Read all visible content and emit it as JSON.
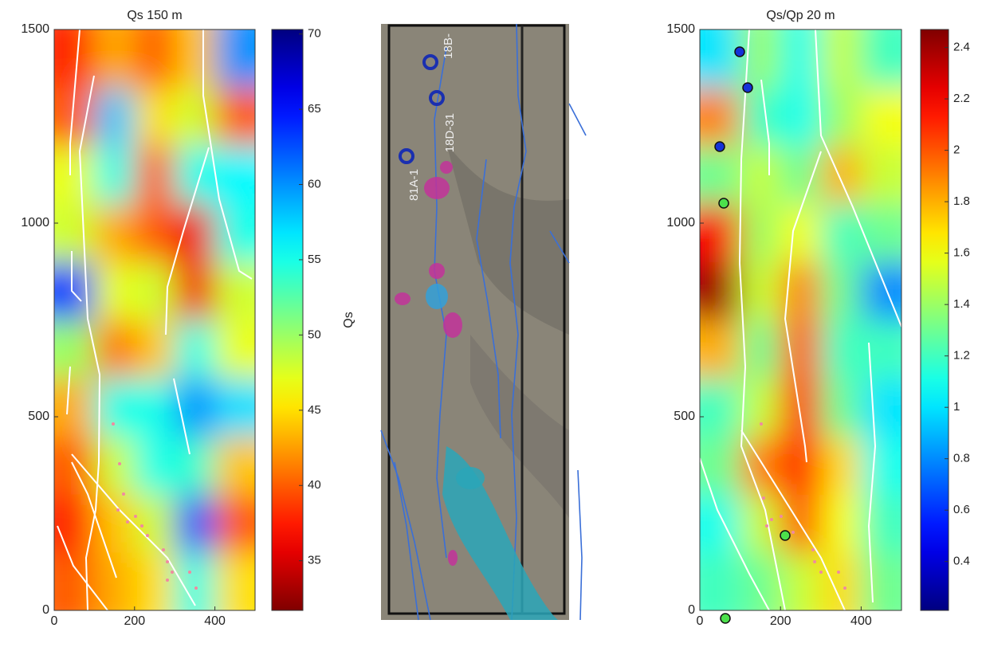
{
  "chart_data": [
    {
      "type": "heatmap",
      "title": "Qs  150 m",
      "colormap": "jet",
      "reverse": true,
      "xlim": [
        0,
        500
      ],
      "ylim": [
        0,
        1500
      ],
      "xticks": [
        0,
        200,
        400
      ],
      "yticks": [
        0,
        500,
        1000,
        1500
      ],
      "x": [
        50,
        150,
        250,
        350,
        450
      ],
      "y": [
        75,
        225,
        375,
        525,
        675,
        825,
        975,
        1125,
        1275,
        1425
      ],
      "z": [
        [
          40,
          43,
          45,
          55,
          45
        ],
        [
          38,
          44,
          48,
          62,
          40
        ],
        [
          40,
          48,
          55,
          54,
          44
        ],
        [
          43,
          55,
          55,
          60,
          57
        ],
        [
          50,
          41,
          44,
          55,
          47
        ],
        [
          63,
          47,
          48,
          36,
          48
        ],
        [
          48,
          43,
          40,
          36,
          55
        ],
        [
          47,
          55,
          40,
          55,
          56
        ],
        [
          40,
          58,
          45,
          48,
          40
        ],
        [
          38,
          43,
          40,
          44,
          60
        ]
      ],
      "clim": [
        31.7,
        70.3
      ],
      "cticks": [
        35,
        40,
        45,
        50,
        55,
        60,
        65,
        70
      ],
      "clabel": "Qs"
    },
    {
      "type": "image",
      "labels": [
        "18B-",
        "18D-31",
        "81A-1"
      ]
    },
    {
      "type": "heatmap",
      "title": "Qs/Qp 20 m",
      "colormap": "jet",
      "reverse": false,
      "xlim": [
        0,
        500
      ],
      "ylim": [
        0,
        1500
      ],
      "xticks": [
        0,
        200,
        400
      ],
      "yticks": [
        0,
        500,
        1000,
        1500
      ],
      "x": [
        50,
        150,
        250,
        350,
        450
      ],
      "y": [
        75,
        225,
        375,
        525,
        675,
        825,
        975,
        1125,
        1275,
        1425
      ],
      "z": [
        [
          1.2,
          1.3,
          1.5,
          1.7,
          1.3
        ],
        [
          1.1,
          1.5,
          2.0,
          1.6,
          1.2
        ],
        [
          1.3,
          1.9,
          2.1,
          1.7,
          1.1
        ],
        [
          1.2,
          1.5,
          2.1,
          1.3,
          1.0
        ],
        [
          1.8,
          1.3,
          2.0,
          1.2,
          1.2
        ],
        [
          2.4,
          1.5,
          1.9,
          1.3,
          0.8
        ],
        [
          2.2,
          1.4,
          1.6,
          1.2,
          1.3
        ],
        [
          1.3,
          1.5,
          1.3,
          1.8,
          1.5
        ],
        [
          1.9,
          1.2,
          1.1,
          1.4,
          1.6
        ],
        [
          1.0,
          1.4,
          1.1,
          1.5,
          1.2
        ]
      ],
      "clim": [
        0.21,
        2.47
      ],
      "cticks": [
        0.4,
        0.6,
        0.8,
        1,
        1.2,
        1.4,
        1.6,
        1.8,
        2,
        2.2,
        2.4
      ]
    }
  ]
}
